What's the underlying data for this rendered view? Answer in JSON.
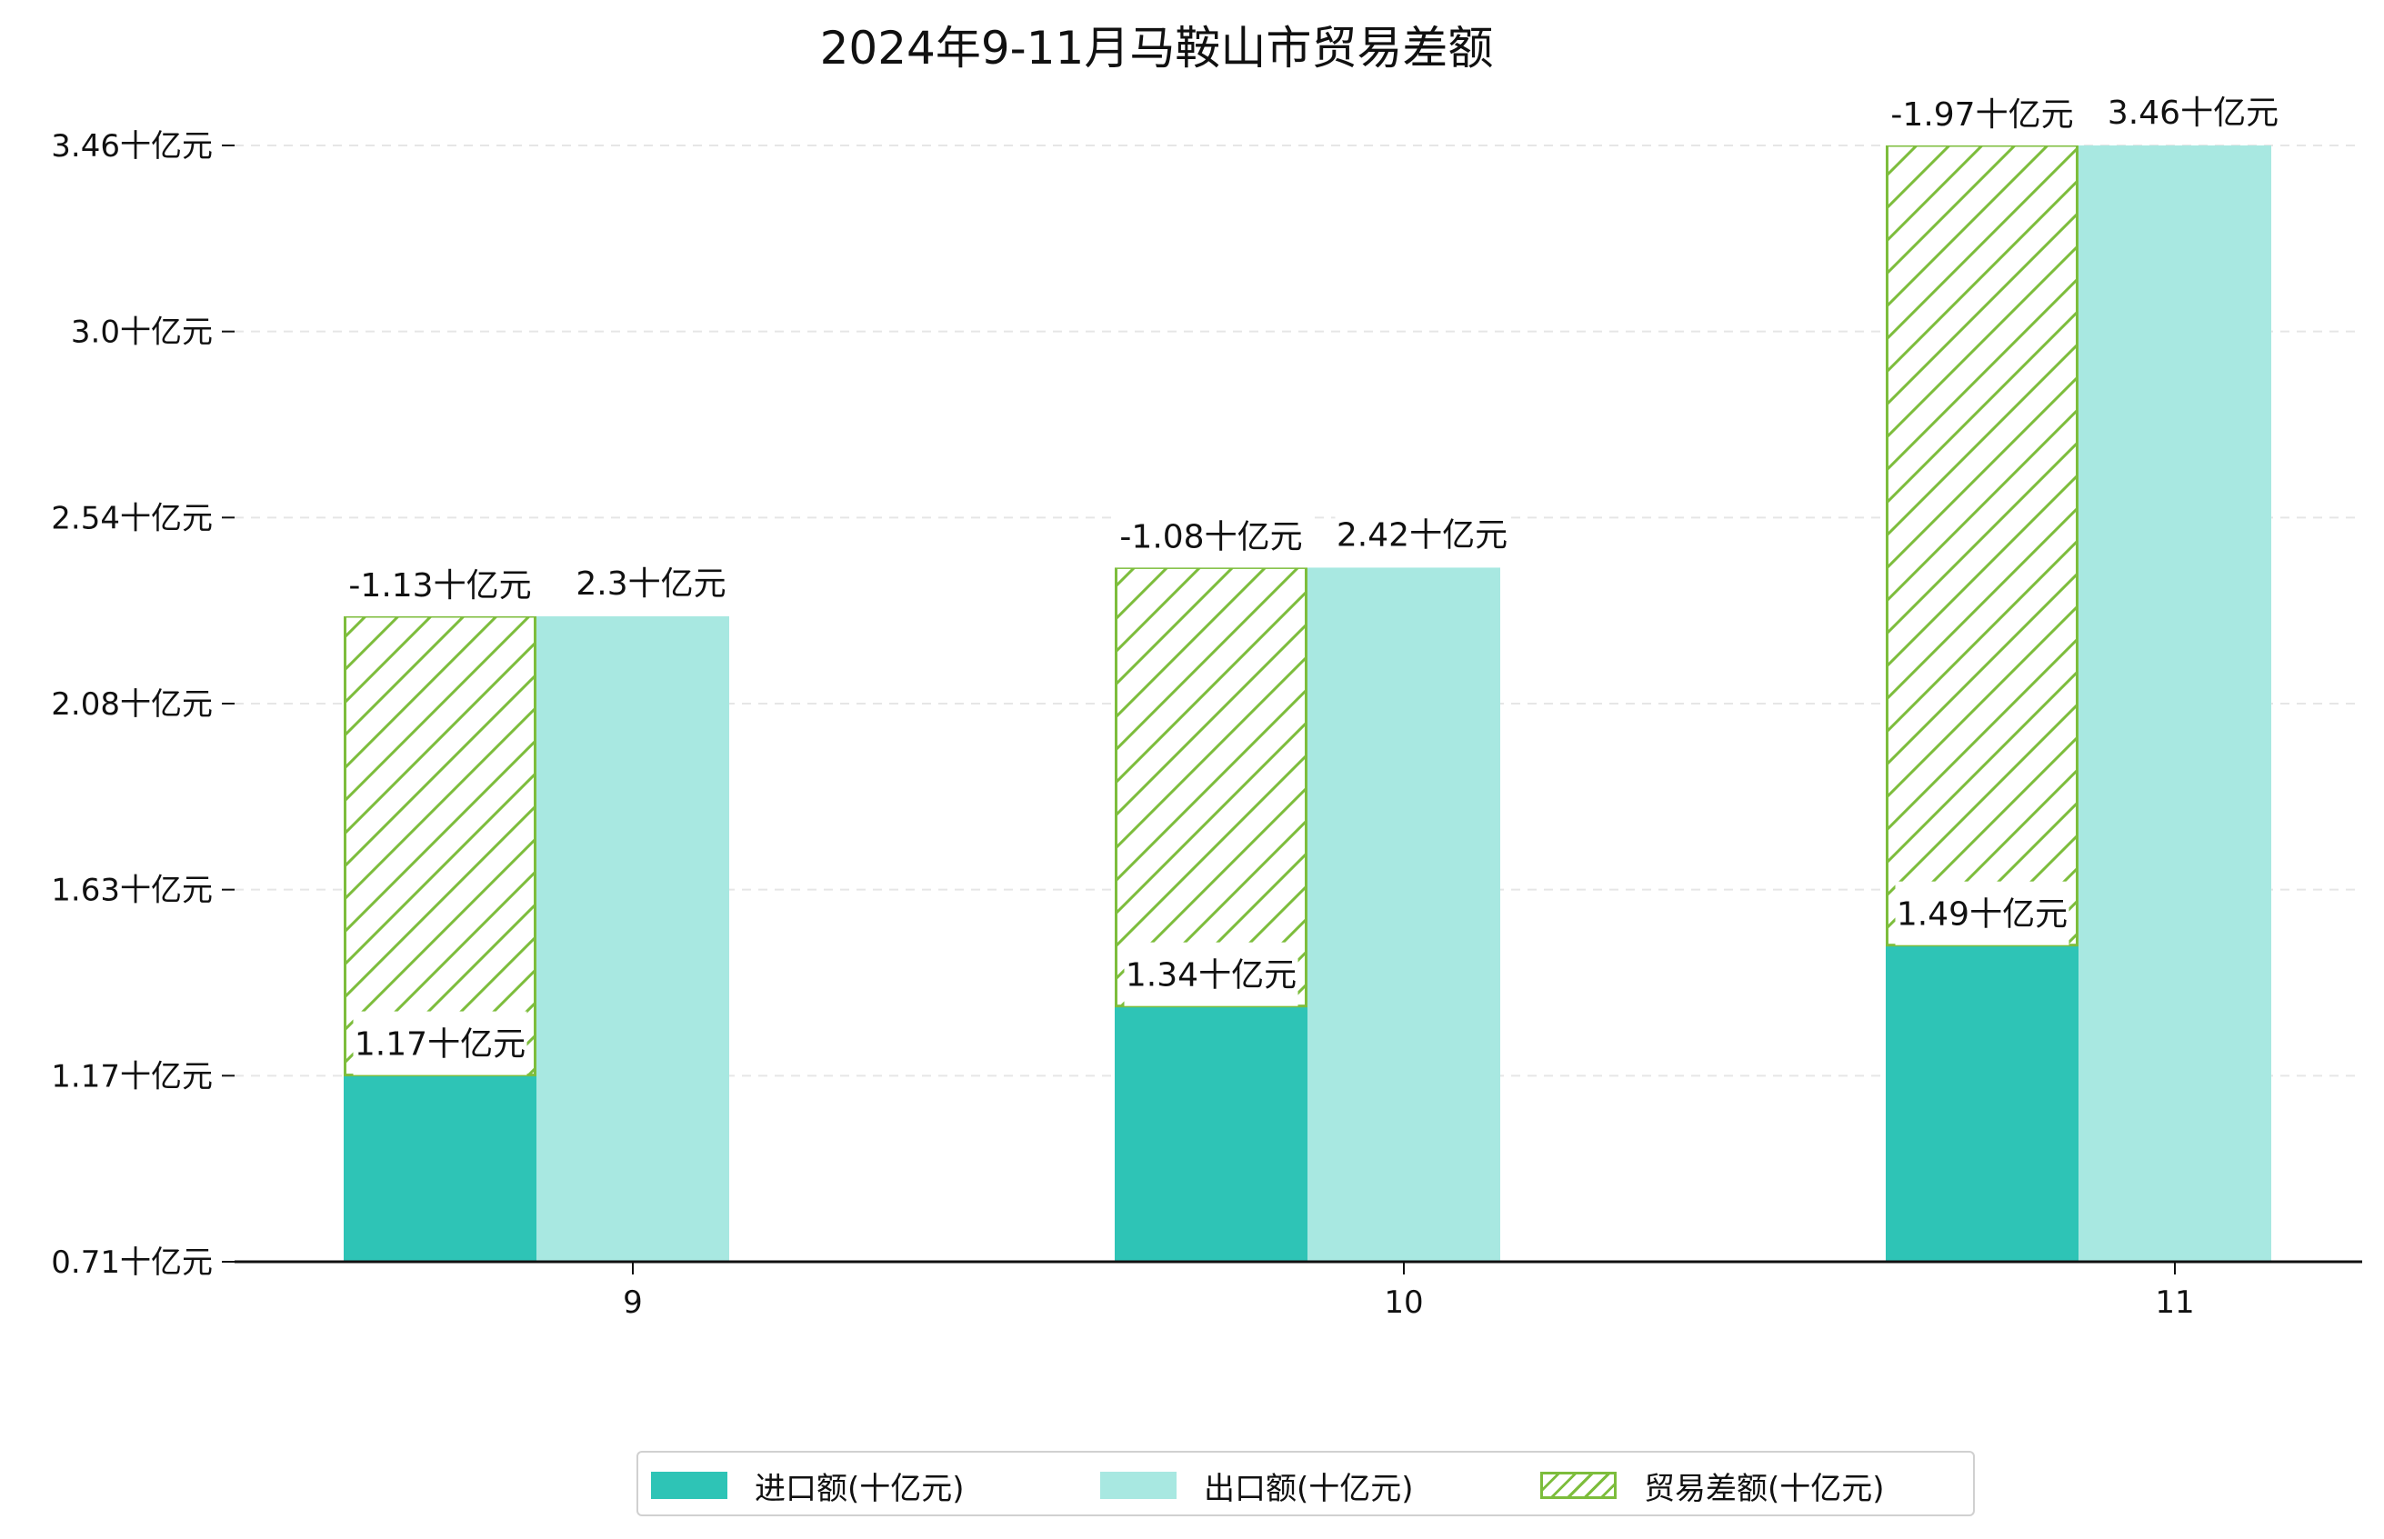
{
  "chart_data": {
    "type": "bar",
    "title": "2024年9-11月马鞍山市贸易差额",
    "categories": [
      "9",
      "10",
      "11"
    ],
    "y_ticks": [
      "0.71十亿元",
      "1.17十亿元",
      "1.63十亿元",
      "2.08十亿元",
      "2.54十亿元",
      "3.0十亿元",
      "3.46十亿元"
    ],
    "ylim": [
      0.71,
      3.46
    ],
    "grid": "horizontal dashed",
    "legend_placement": "bottom-center",
    "series": [
      {
        "name": "进口额(十亿元)",
        "color": "#2ec4b6",
        "values": [
          1.17,
          1.34,
          1.49
        ],
        "labels": [
          "1.17十亿元",
          "1.34十亿元",
          "1.49十亿元"
        ]
      },
      {
        "name": "出口额(十亿元)",
        "color": "#a8e8e1",
        "values": [
          2.3,
          2.42,
          3.46
        ],
        "labels": [
          "2.3十亿元",
          "2.42十亿元",
          "3.46十亿元"
        ]
      },
      {
        "name": "贸易差额(十亿元)",
        "color": "#7dbd3c",
        "pattern": "hatch",
        "values": [
          -1.13,
          -1.08,
          -1.97
        ],
        "labels": [
          "-1.13十亿元",
          "-1.08十亿元",
          "-1.97十亿元"
        ]
      }
    ]
  }
}
